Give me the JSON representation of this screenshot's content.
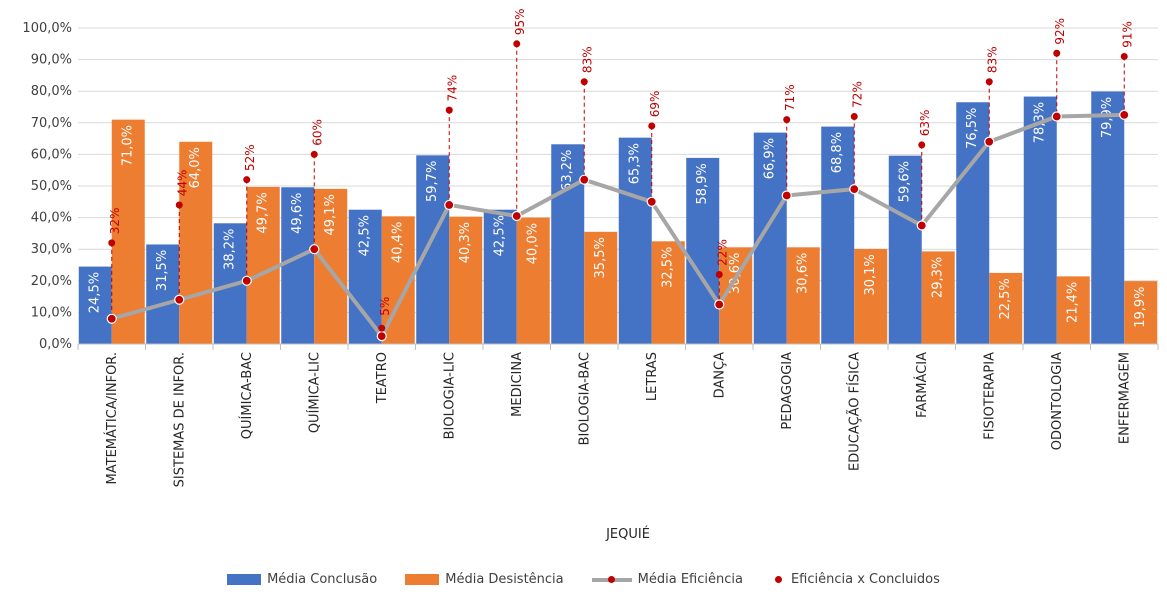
{
  "chart_data": {
    "type": "bar",
    "xlabel": "JEQUIÉ",
    "ylabel": "",
    "title": "",
    "ylim": [
      0,
      100
    ],
    "yticks": [
      "0,0%",
      "10,0%",
      "20,0%",
      "30,0%",
      "40,0%",
      "50,0%",
      "60,0%",
      "70,0%",
      "80,0%",
      "90,0%",
      "100,0%"
    ],
    "categories": [
      "MATEMÁTICA/INFOR.",
      "SISTEMAS DE INFOR.",
      "QUÍMICA-BAC",
      "QUÍMICA-LIC",
      "TEATRO",
      "BIOLOGIA-LIC",
      "MEDICINA",
      "BIOLOGIA-BAC",
      "LETRAS",
      "DANÇA",
      "PEDAGOGIA",
      "EDUCAÇÃO FÍSICA",
      "FARMÁCIA",
      "FISIOTERAPIA",
      "ODONTOLOGIA",
      "ENFERMAGEM"
    ],
    "series": [
      {
        "name": "Média Conclusão",
        "kind": "bar",
        "color": "#4472c4",
        "values": [
          24.5,
          31.5,
          38.2,
          49.6,
          42.5,
          59.7,
          42.5,
          63.2,
          65.3,
          58.9,
          66.9,
          68.8,
          59.6,
          76.5,
          78.3,
          79.9
        ],
        "labels": [
          "24,5%",
          "31,5%",
          "38,2%",
          "49,6%",
          "42,5%",
          "59,7%",
          "42,5%",
          "63,2%",
          "65,3%",
          "58,9%",
          "66,9%",
          "68,8%",
          "59,6%",
          "76,5%",
          "78,3%",
          "79,9%"
        ]
      },
      {
        "name": "Média Desistência",
        "kind": "bar",
        "color": "#ed7d31",
        "values": [
          71.0,
          64.0,
          49.7,
          49.1,
          40.4,
          40.3,
          40.0,
          35.5,
          32.5,
          30.6,
          30.6,
          30.1,
          29.3,
          22.5,
          21.4,
          19.9
        ],
        "labels": [
          "71,0%",
          "64,0%",
          "49,7%",
          "49,1%",
          "40,4%",
          "40,3%",
          "40,0%",
          "35,5%",
          "32,5%",
          "30,6%",
          "30,6%",
          "30,1%",
          "29,3%",
          "22,5%",
          "21,4%",
          "19,9%"
        ]
      },
      {
        "name": "Média Eficiência",
        "kind": "line",
        "color": "#a6a6a6",
        "marker_color": "#c00000",
        "values": [
          8,
          14,
          20,
          30,
          2.5,
          44,
          40.5,
          52,
          45,
          12.5,
          47,
          49,
          37.5,
          64,
          72,
          72.5
        ]
      },
      {
        "name": "Eficiência x Concluidos",
        "kind": "scatter",
        "color": "#c00000",
        "values": [
          32,
          44,
          52,
          60,
          5,
          74,
          95,
          83,
          69,
          22,
          71,
          72,
          63,
          83,
          92,
          91
        ],
        "labels": [
          "32%",
          "44%",
          "52%",
          "60%",
          "5%",
          "74%",
          "95%",
          "83%",
          "69%",
          "22%",
          "71%",
          "72%",
          "63%",
          "83%",
          "92%",
          "91%"
        ]
      }
    ],
    "legend": "bottom"
  }
}
